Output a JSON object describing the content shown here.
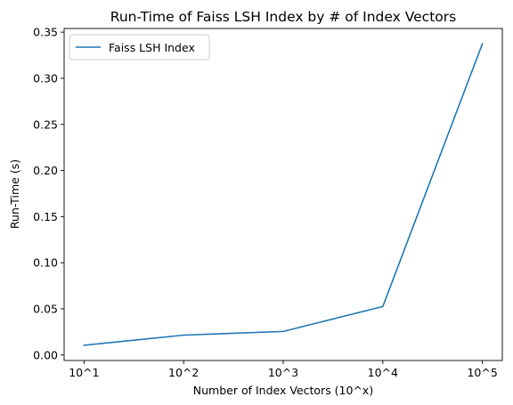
{
  "chart_data": {
    "type": "line",
    "title": "Run-Time of Faiss LSH Index by # of Index Vectors",
    "xlabel": "Number of Index Vectors (10^x)",
    "ylabel": "Run-Time (s)",
    "categories": [
      "10^1",
      "10^2",
      "10^3",
      "10^4",
      "10^5"
    ],
    "x": [
      1,
      2,
      3,
      4,
      5
    ],
    "series": [
      {
        "name": "Faiss LSH Index",
        "color": "#1f77b4",
        "values": [
          0.0105,
          0.0215,
          0.0255,
          0.0525,
          0.3375
        ]
      }
    ],
    "xlim": [
      0.8,
      5.2
    ],
    "ylim": [
      -0.006,
      0.354
    ],
    "yticks": [
      0.0,
      0.05,
      0.1,
      0.15,
      0.2,
      0.25,
      0.3,
      0.35
    ],
    "ytick_labels": [
      "0.00",
      "0.05",
      "0.10",
      "0.15",
      "0.20",
      "0.25",
      "0.30",
      "0.35"
    ],
    "grid": false,
    "legend_position": "top-left"
  }
}
